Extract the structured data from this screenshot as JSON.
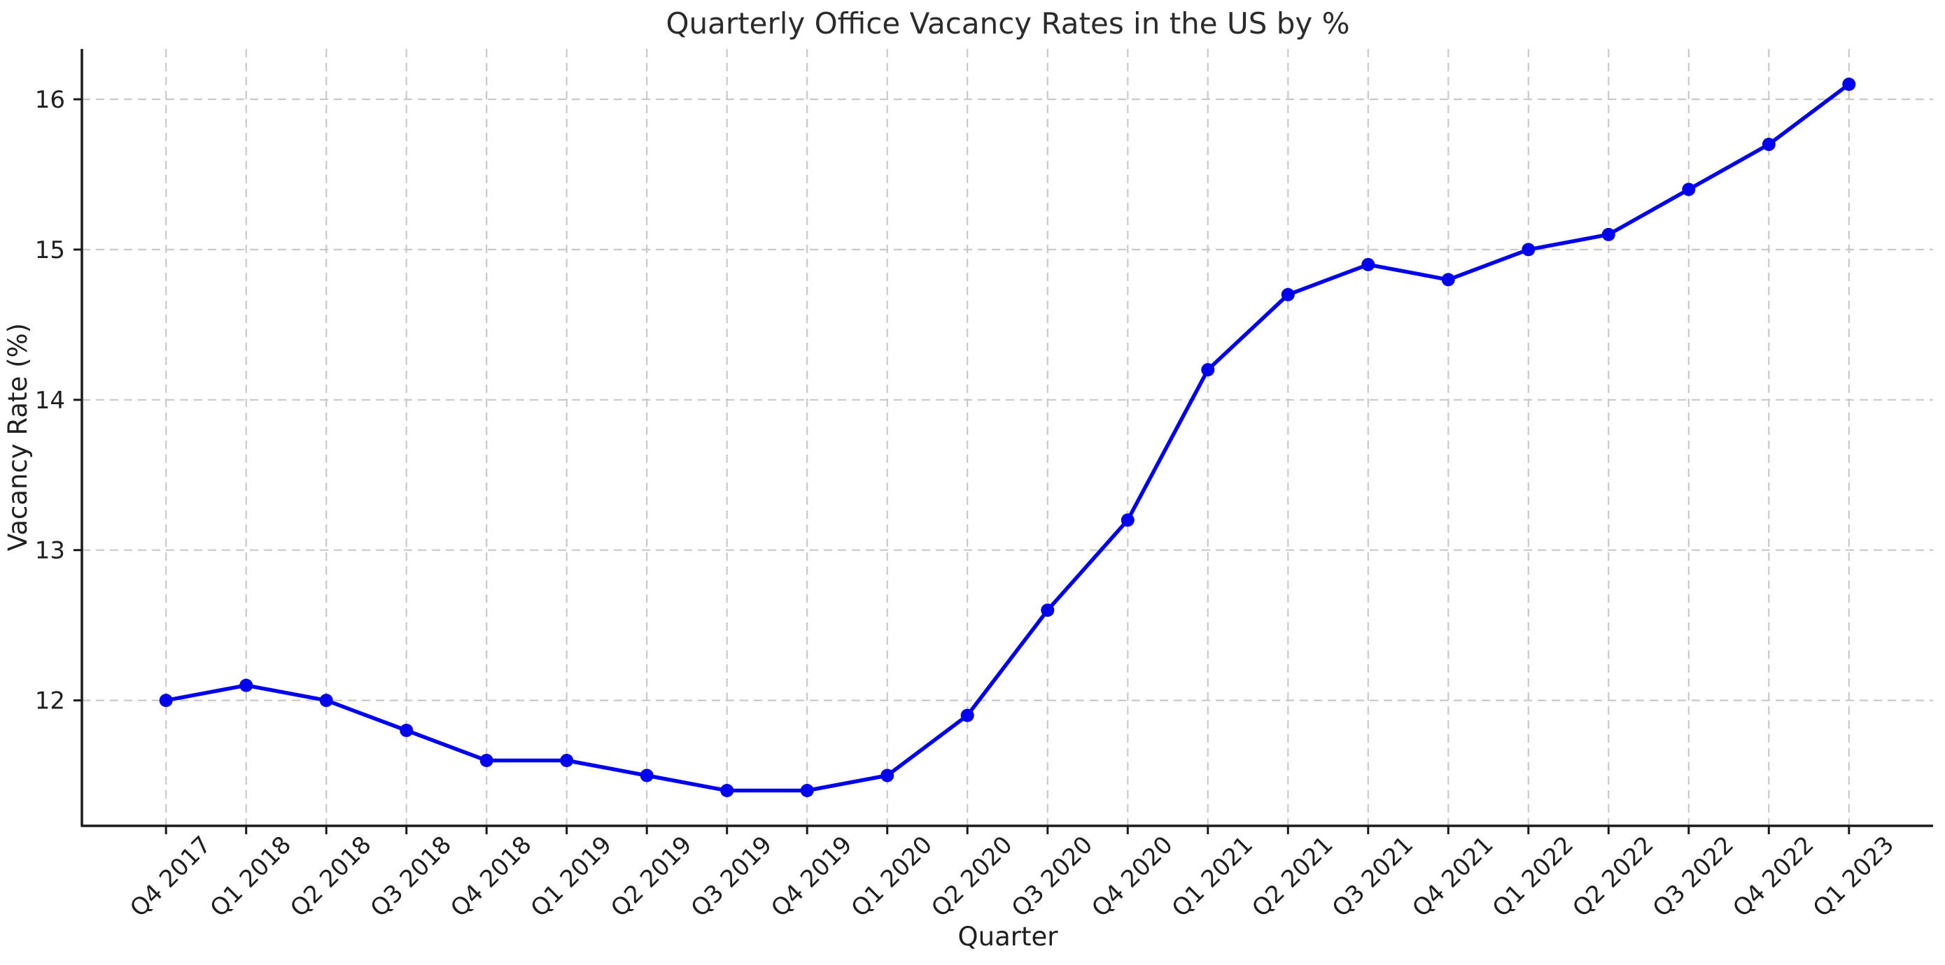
{
  "chart_data": {
    "type": "line",
    "title": "Quarterly Office Vacancy Rates in the US by %",
    "xlabel": "Quarter",
    "ylabel": "Vacancy Rate (%)",
    "categories": [
      "Q4 2017",
      "Q1 2018",
      "Q2 2018",
      "Q3 2018",
      "Q4 2018",
      "Q1 2019",
      "Q2 2019",
      "Q3 2019",
      "Q4 2019",
      "Q1 2020",
      "Q2 2020",
      "Q3 2020",
      "Q4 2020",
      "Q1 2021",
      "Q2 2021",
      "Q3 2021",
      "Q4 2021",
      "Q1 2022",
      "Q2 2022",
      "Q3 2022",
      "Q4 2022",
      "Q1 2023"
    ],
    "values": [
      12.0,
      12.1,
      12.0,
      11.8,
      11.6,
      11.6,
      11.5,
      11.4,
      11.4,
      11.5,
      11.9,
      12.6,
      13.2,
      14.2,
      14.7,
      14.9,
      14.8,
      15.0,
      15.1,
      15.4,
      15.7,
      16.1
    ],
    "yticks": [
      12,
      13,
      14,
      15,
      16
    ],
    "ytick_labels": [
      "12",
      "13",
      "14",
      "15",
      "16"
    ],
    "ylim": [
      11.165,
      16.335
    ],
    "x_margin_units": 1.05,
    "x_tick_rotation_deg": 45,
    "grid": true,
    "grid_style": "dashed",
    "legend": false,
    "line_color": "#0000ee",
    "marker": "circle",
    "marker_color": "#0000ee",
    "grid_color": "#c9c9c9",
    "spine_color": "#1a1a1a",
    "text_color": "#1f1f1f"
  }
}
